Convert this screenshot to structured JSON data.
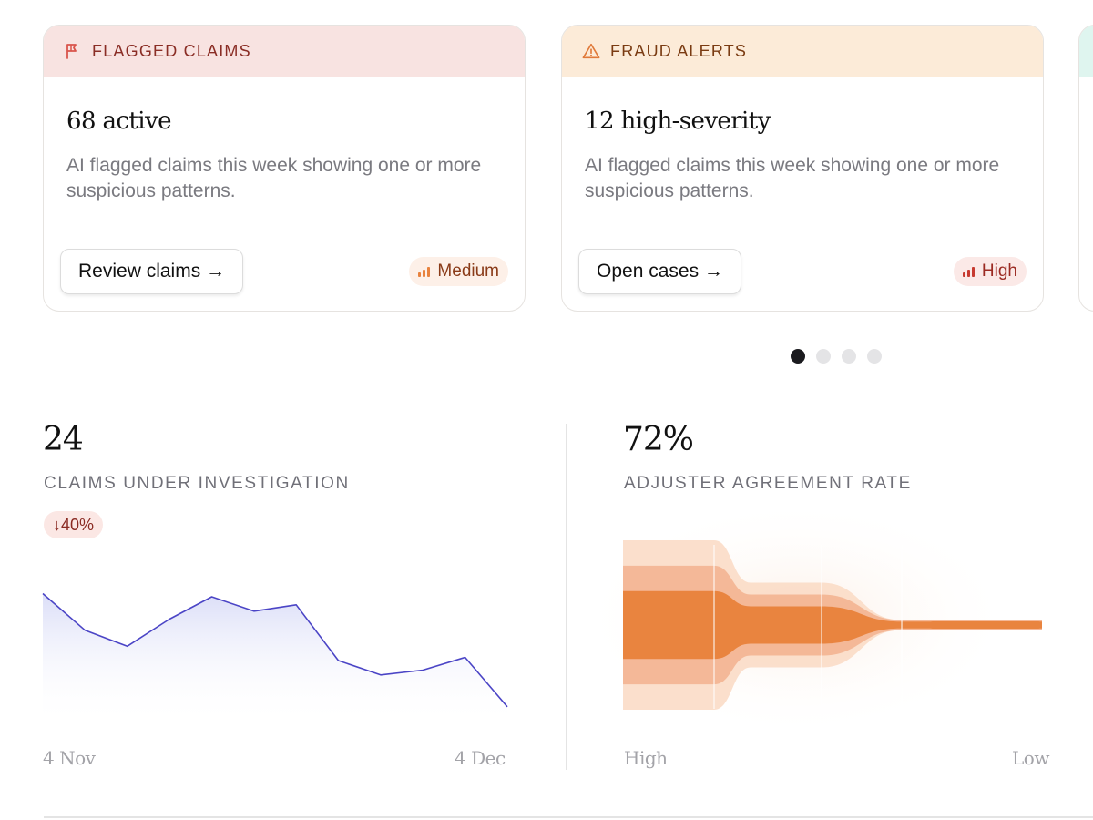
{
  "cards": [
    {
      "header": "FLAGGED CLAIMS",
      "title": "68 active",
      "description": "AI flagged claims this week showing one or more suspicious patterns.",
      "button": "Review claims →",
      "badge": "Medium",
      "icon": "flag-icon",
      "colors": {
        "header_bg": "#f8e3e1",
        "header_text": "#8a2d25",
        "icon": "#d9544b",
        "badge_bg": "#fdf0e8",
        "badge_text": "#8a3b18",
        "bars": "#e8823e"
      }
    },
    {
      "header": "FRAUD ALERTS",
      "title": "12 high-severity",
      "description": "AI flagged claims this week showing one or more suspicious patterns.",
      "button": "Open cases →",
      "badge": "High",
      "icon": "warning-triangle-icon",
      "colors": {
        "header_bg": "#fcebd8",
        "header_text": "#7a3b12",
        "icon": "#e07a3a",
        "badge_bg": "#fbe9e7",
        "badge_text": "#9b2a22",
        "bars": "#c73a30"
      }
    }
  ],
  "carousel": {
    "pages": 4,
    "active": 0
  },
  "metrics": {
    "investigation": {
      "value": "24",
      "label": "CLAIMS UNDER INVESTIGATION",
      "delta": "↓40%",
      "x_start": "4 Nov",
      "x_end": "4 Dec"
    },
    "agreement": {
      "value": "72%",
      "label": "ADJUSTER AGREEMENT RATE",
      "x_start": "High",
      "x_end": "Low"
    }
  },
  "chart_data": [
    {
      "type": "area",
      "x": [
        "4 Nov",
        "",
        "",
        "",
        "",
        "",
        "",
        "",
        "",
        "",
        "",
        "4 Dec"
      ],
      "values": [
        82,
        59,
        49,
        66,
        80,
        71,
        75,
        40,
        31,
        34,
        42,
        11
      ],
      "ylim": [
        0,
        100
      ],
      "color": "#4b45c6"
    },
    {
      "type": "area",
      "x_labels": [
        "High",
        "Low"
      ],
      "bands": [
        {
          "name": "outer",
          "values": [
            100,
            100,
            50,
            50,
            6,
            6
          ]
        },
        {
          "name": "middle",
          "values": [
            70,
            70,
            36,
            36,
            6,
            6
          ]
        },
        {
          "name": "inner",
          "values": [
            40,
            40,
            22,
            22,
            4,
            4
          ]
        }
      ],
      "color": "#e8823e"
    }
  ]
}
